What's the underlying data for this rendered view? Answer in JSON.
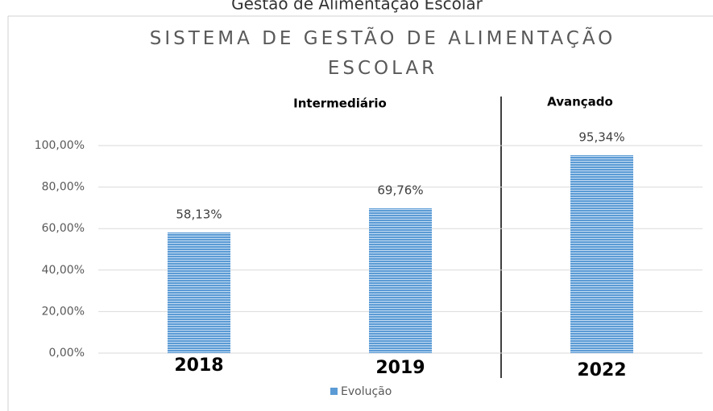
{
  "page_title": "Gestão de Alimentação Escolar",
  "chart_data": {
    "type": "bar",
    "title": "SISTEMA DE GESTÃO DE ALIMENTAÇÃO ESCOLAR",
    "annotations": [
      "Intermediário",
      "Avançado"
    ],
    "categories": [
      "2018",
      "2019",
      "2022"
    ],
    "series": [
      {
        "name": "Evolução",
        "color": "#5b9bd5",
        "values": [
          58.13,
          69.76,
          95.34
        ],
        "value_labels": [
          "58,13%",
          "69,76%",
          "95,34%"
        ]
      }
    ],
    "ylim": [
      0,
      100
    ],
    "yticks": [
      {
        "value": 0,
        "label": "0,00%"
      },
      {
        "value": 20,
        "label": "20,00%"
      },
      {
        "value": 40,
        "label": "40,00%"
      },
      {
        "value": 60,
        "label": "60,00%"
      },
      {
        "value": 80,
        "label": "80,00%"
      },
      {
        "value": 100,
        "label": "100,00%"
      }
    ],
    "grid": true,
    "legend": "bottom"
  }
}
